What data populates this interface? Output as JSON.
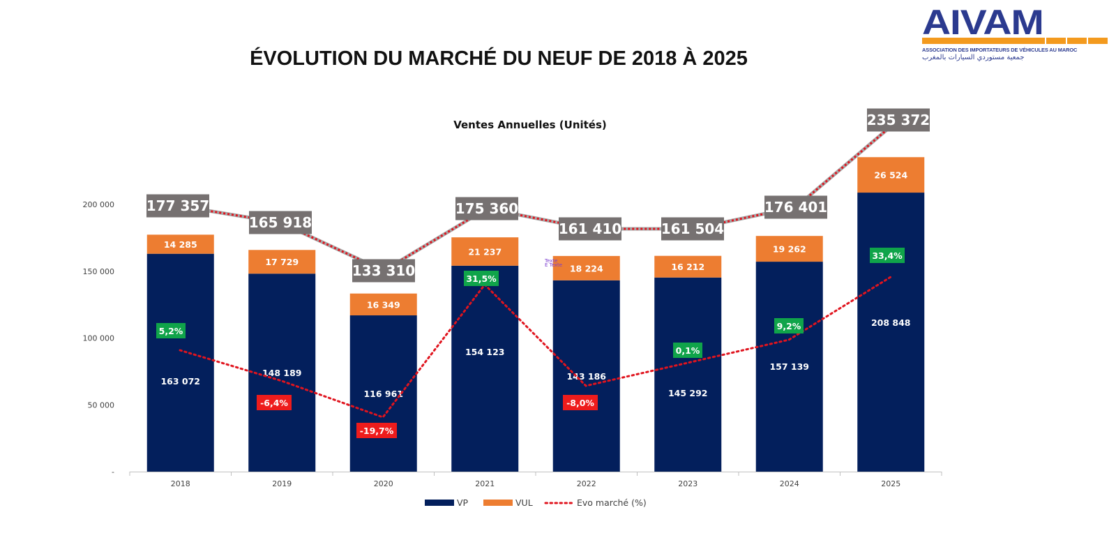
{
  "header": {
    "title": "ÉVOLUTION DU MARCHÉ DU NEUF DE 2018 À 2025",
    "logo": {
      "name": "AIVAM",
      "subtitle": "ASSOCIATION DES IMPORTATEURS DE VÉHICULES AU MAROC",
      "arabic": "جمعية مستوردي السيارات بالمغرب"
    }
  },
  "stray_text": [
    "Texte",
    "E Texte"
  ],
  "colors": {
    "vp": "#031f5c",
    "vul": "#ed7d31",
    "evo_line": "#e0141e",
    "total_box": "#767171",
    "positive": "#10a44a",
    "negative": "#ee1c1c",
    "logo_blue": "#2b3a8f",
    "logo_orange": "#f39a1e"
  },
  "chart_data": {
    "type": "bar",
    "stacked": true,
    "title": "Ventes Annuelles (Unités)",
    "xlabel": "",
    "ylabel": "",
    "categories": [
      "2018",
      "2019",
      "2020",
      "2021",
      "2022",
      "2023",
      "2024",
      "2025"
    ],
    "series": [
      {
        "name": "VP",
        "values": [
          163072,
          148189,
          116961,
          154123,
          143186,
          145292,
          157139,
          208848
        ],
        "labels": [
          "163 072",
          "148 189",
          "116 961",
          "154 123",
          "143 186",
          "145 292",
          "157 139",
          "208 848"
        ]
      },
      {
        "name": "VUL",
        "values": [
          14285,
          17729,
          16349,
          21237,
          18224,
          16212,
          19262,
          26524
        ],
        "labels": [
          "14 285",
          "17 729",
          "16 349",
          "21 237",
          "18 224",
          "16 212",
          "19 262",
          "26 524"
        ]
      }
    ],
    "totals": {
      "values": [
        177357,
        165918,
        133310,
        175360,
        161410,
        161504,
        176401,
        235372
      ],
      "labels": [
        "177 357",
        "165 918",
        "133 310",
        "175 360",
        "161 410",
        "161 504",
        "176 401",
        "235 372"
      ]
    },
    "evo_series": {
      "name": "Evo marché (%)",
      "type": "line",
      "style": "dotted",
      "values": [
        5.2,
        -6.4,
        -19.7,
        31.5,
        -8.0,
        0.1,
        9.2,
        33.4
      ],
      "labels": [
        "5,2%",
        "-6,4%",
        "-19,7%",
        "31,5%",
        "-8,0%",
        "0,1%",
        "9,2%",
        "33,4%"
      ]
    },
    "yaxis": {
      "ticks": [
        0,
        50000,
        100000,
        150000,
        200000
      ],
      "tick_labels": [
        "-",
        "50 000",
        "100 000",
        "150 000",
        "200 000"
      ],
      "ylim": [
        0,
        200000
      ]
    },
    "grid": false,
    "legend": {
      "position": "bottom",
      "entries": [
        "VP",
        "VUL",
        "Evo marché (%)"
      ]
    }
  }
}
